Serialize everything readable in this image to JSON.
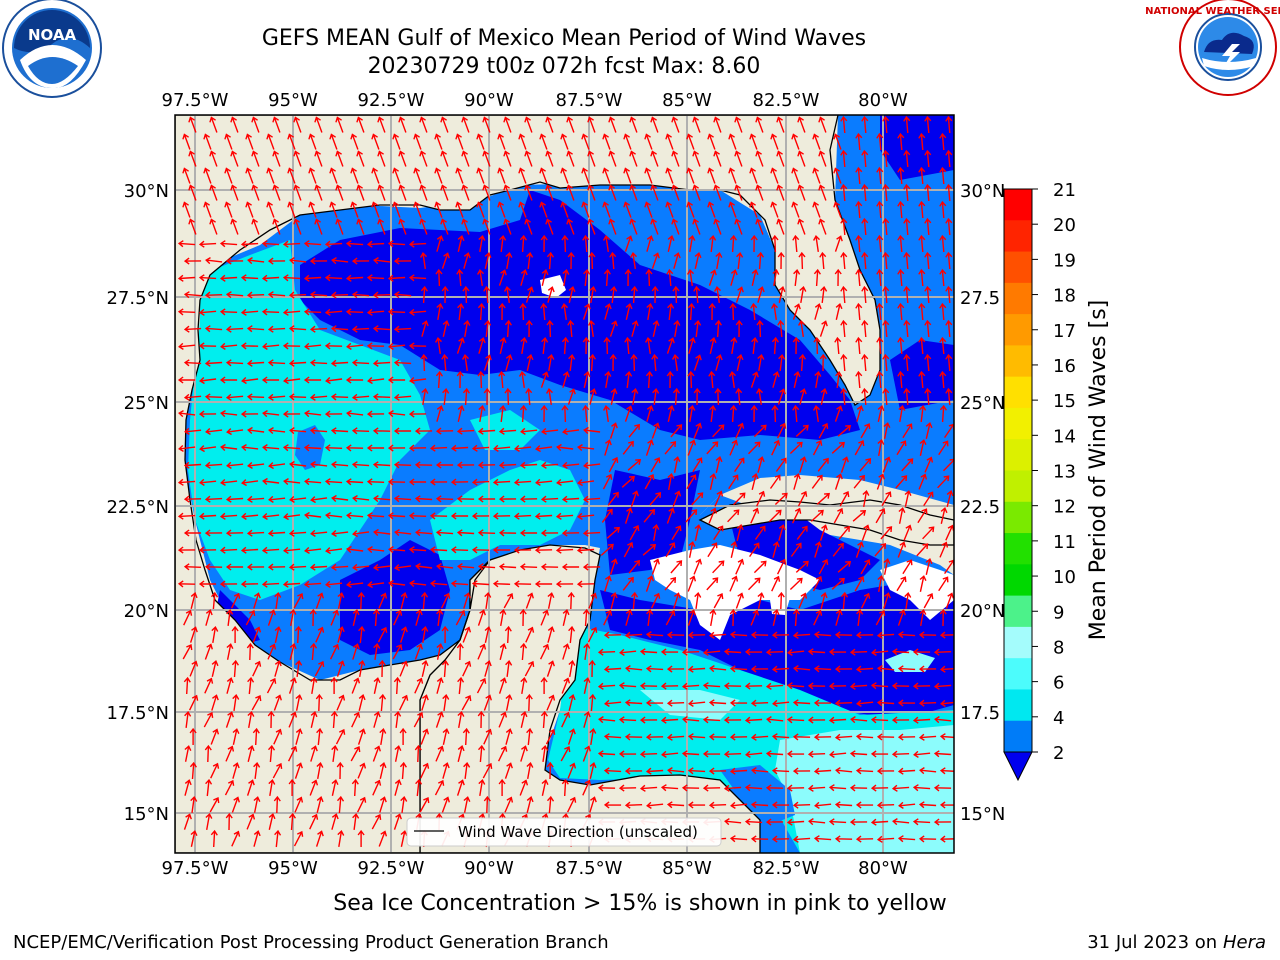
{
  "title_line1": "GEFS MEAN Gulf of Mexico Mean Period of Wind Waves",
  "title_line2": "20230729 t00z 072h fcst   Max: 8.60",
  "map": {
    "lon_ticks": [
      "97.5°W",
      "95°W",
      "92.5°W",
      "90°W",
      "87.5°W",
      "85°W",
      "82.5°W",
      "80°W"
    ],
    "lat_ticks_left": [
      "30°N",
      "27.5°N",
      "25°N",
      "22.5°N",
      "20°N",
      "17.5°N",
      "15°N"
    ],
    "lat_ticks_right": [
      "30°N",
      "27.5",
      "25°N",
      "22.5",
      "20°N",
      "17.5",
      "15°N"
    ],
    "legend_label": "Wind Wave Direction (unscaled)",
    "colors": {
      "land": "#eeecdc",
      "period_2_4": "#0a7cff",
      "period_lt_2": "#0000ee",
      "period_4_6": "#00eeee",
      "period_6_8": "#8cfcfc",
      "arrows": "#ff0000"
    }
  },
  "colorbar": {
    "label": "Mean Period of Wind Waves [s]",
    "ticks": [
      "21",
      "20",
      "19",
      "18",
      "17",
      "16",
      "15",
      "14",
      "13",
      "12",
      "11",
      "10",
      "9",
      "8",
      "6",
      "4",
      "2"
    ],
    "colors": [
      "#ff0000",
      "#ff2400",
      "#ff5000",
      "#ff7a00",
      "#ff9a00",
      "#ffbb00",
      "#ffe000",
      "#f2f000",
      "#dcf000",
      "#c0f000",
      "#7aea00",
      "#22e000",
      "#00d800",
      "#4cf28a",
      "#a4fcfc",
      "#4cfcfc",
      "#00e8f0",
      "#007cf8"
    ],
    "extend_color": "#0000ee"
  },
  "logos": {
    "left_text": "NOAA",
    "right_text": "NATIONAL WEATHER SERVICE"
  },
  "footer": {
    "note": "Sea Ice Concentration > 15% is shown in pink to yellow",
    "credit": "NCEP/EMC/Verification Post Processing Product Generation Branch",
    "date": "31 Jul 2023 on",
    "machine": "Hera"
  }
}
